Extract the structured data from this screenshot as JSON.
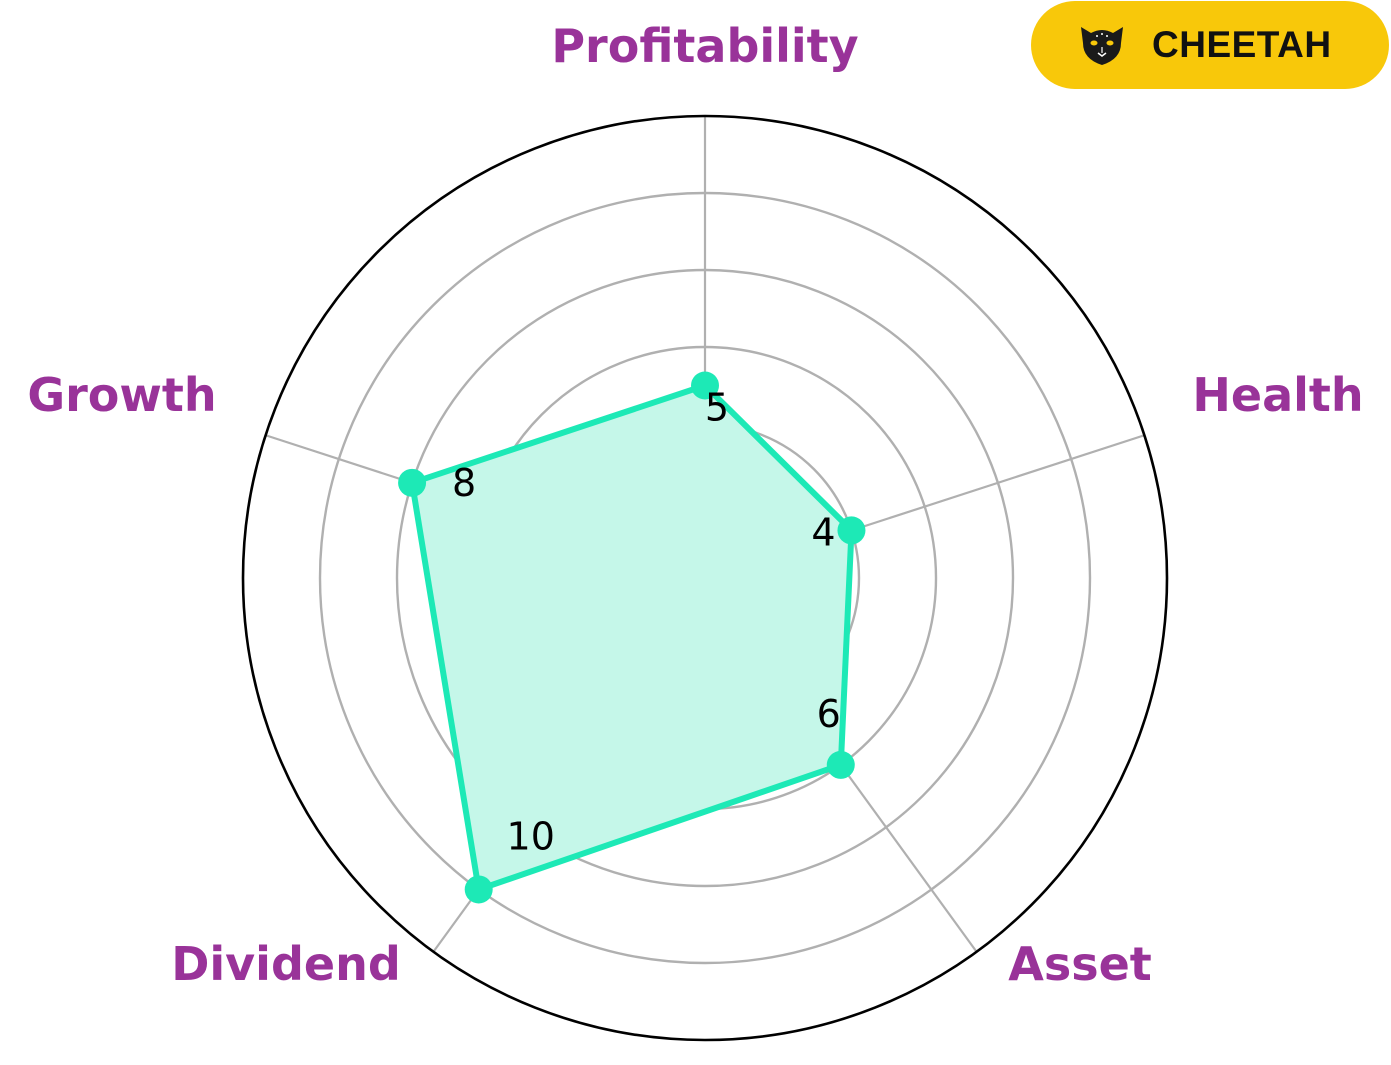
{
  "brand": {
    "name": "CHEETAH",
    "icon": "cheetah-head-icon",
    "badge_color": "#f8c80a"
  },
  "chart_data": {
    "type": "radar",
    "axes": [
      "Profitability",
      "Health",
      "Asset",
      "Dividend",
      "Growth"
    ],
    "values": [
      5,
      4,
      6,
      10,
      8
    ],
    "value_labels": [
      "5",
      "4",
      "6",
      "10",
      "8"
    ],
    "rmax": 12,
    "rings": [
      2,
      4,
      6,
      8,
      10
    ],
    "grid": true,
    "colors": {
      "series_line": "#1de9b6",
      "series_fill": "#c5f7e9",
      "axis_label": "#993399",
      "grid": "#b0b0b0",
      "outer_ring": "#000000"
    }
  }
}
